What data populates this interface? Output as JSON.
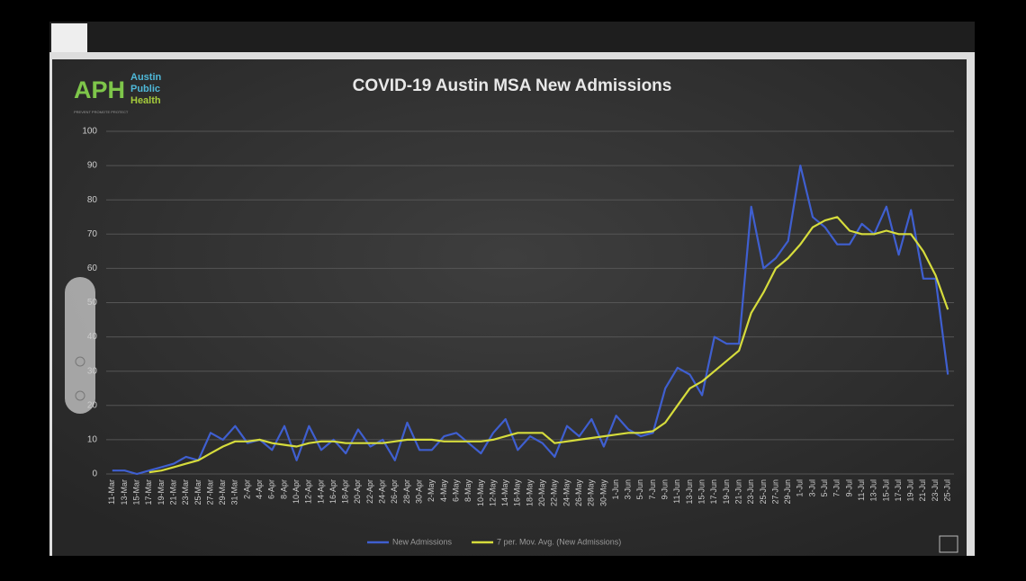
{
  "logo": {
    "mark": "APH",
    "lines": [
      "Austin",
      "Public",
      "Health"
    ],
    "tagline": "PREVENT PROMOTE PROTECT"
  },
  "chart_data": {
    "type": "line",
    "title": "COVID-19 Austin MSA New Admissions",
    "categories": [
      "11-Mar",
      "13-Mar",
      "15-Mar",
      "17-Mar",
      "19-Mar",
      "21-Mar",
      "23-Mar",
      "25-Mar",
      "27-Mar",
      "29-Mar",
      "31-Mar",
      "2-Apr",
      "4-Apr",
      "6-Apr",
      "8-Apr",
      "10-Apr",
      "12-Apr",
      "14-Apr",
      "16-Apr",
      "18-Apr",
      "20-Apr",
      "22-Apr",
      "24-Apr",
      "26-Apr",
      "28-Apr",
      "30-Apr",
      "2-May",
      "4-May",
      "6-May",
      "8-May",
      "10-May",
      "12-May",
      "14-May",
      "16-May",
      "18-May",
      "20-May",
      "22-May",
      "24-May",
      "26-May",
      "28-May",
      "30-May",
      "1-Jun",
      "3-Jun",
      "5-Jun",
      "7-Jun",
      "9-Jun",
      "11-Jun",
      "13-Jun",
      "15-Jun",
      "17-Jun",
      "19-Jun",
      "21-Jun",
      "23-Jun",
      "25-Jun",
      "27-Jun",
      "29-Jun",
      "1-Jul",
      "3-Jul",
      "5-Jul",
      "7-Jul",
      "9-Jul",
      "11-Jul",
      "13-Jul",
      "15-Jul",
      "17-Jul",
      "19-Jul",
      "21-Jul",
      "23-Jul",
      "25-Jul"
    ],
    "series": [
      {
        "name": "New Admissions",
        "color": "#3f5fd0",
        "values": [
          1,
          1,
          0,
          1,
          2,
          3,
          5,
          4,
          12,
          10,
          14,
          9,
          10,
          7,
          14,
          4,
          14,
          7,
          10,
          6,
          13,
          8,
          10,
          4,
          15,
          7,
          7,
          11,
          12,
          9,
          6,
          12,
          16,
          7,
          11,
          9,
          5,
          14,
          11,
          16,
          8,
          17,
          13,
          11,
          12,
          25,
          31,
          29,
          23,
          40,
          38,
          38,
          78,
          60,
          63,
          68,
          90,
          75,
          72,
          67,
          67,
          73,
          70,
          78,
          64,
          77,
          57,
          57,
          29
        ]
      },
      {
        "name": "7 per. Mov. Avg. (New Admissions)",
        "color": "#d6dc3c",
        "values": [
          null,
          null,
          null,
          0.5,
          1,
          2,
          3,
          4,
          6,
          8,
          9.5,
          9.5,
          10,
          9,
          8.5,
          8,
          9,
          9.5,
          9.5,
          9,
          9,
          9,
          9,
          9.5,
          10,
          10,
          10,
          9.5,
          9.5,
          9.5,
          9.5,
          10,
          11,
          12,
          12,
          12,
          9,
          9.5,
          10,
          10.5,
          11,
          11.5,
          12,
          12,
          12.5,
          15,
          20,
          25,
          27,
          30,
          33,
          36,
          47,
          53,
          60,
          63,
          67,
          72,
          74,
          75,
          71,
          70,
          70,
          71,
          70,
          70,
          65,
          58,
          48
        ]
      }
    ],
    "ylim": [
      0,
      100
    ],
    "yticks": [
      0,
      10,
      20,
      30,
      40,
      50,
      60,
      70,
      80,
      90,
      100
    ],
    "grid": true,
    "legend": "bottom"
  }
}
